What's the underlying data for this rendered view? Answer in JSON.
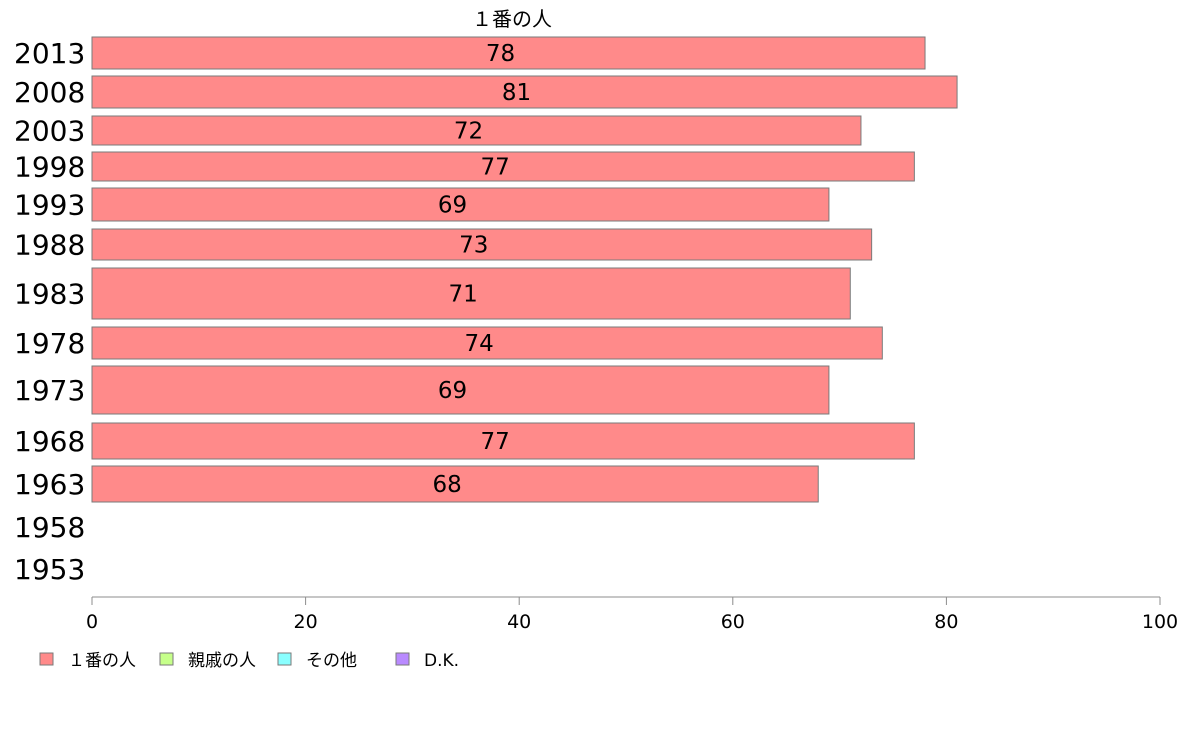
{
  "chart_data": {
    "type": "bar",
    "orientation": "horizontal",
    "series_title": "１番の人",
    "categories": [
      "2013",
      "2008",
      "2003",
      "1998",
      "1993",
      "1988",
      "1983",
      "1978",
      "1973",
      "1968",
      "1963",
      "1958",
      "1953"
    ],
    "series": [
      {
        "name": "１番の人",
        "color": "#ff8a8a",
        "values": [
          78,
          81,
          72,
          77,
          69,
          73,
          71,
          74,
          69,
          77,
          68,
          null,
          null
        ]
      }
    ],
    "xlim": [
      0,
      100
    ],
    "xticks": [
      0,
      20,
      40,
      60,
      80,
      100
    ],
    "grid": false,
    "legend": {
      "placement": "bottom-left",
      "items": [
        {
          "label": "１番の人",
          "color": "#ff8a8a"
        },
        {
          "label": "親戚の人",
          "color": "#c6ff8a"
        },
        {
          "label": "その他",
          "color": "#8affff"
        },
        {
          "label": "D.K.",
          "color": "#b98aff"
        }
      ]
    }
  }
}
